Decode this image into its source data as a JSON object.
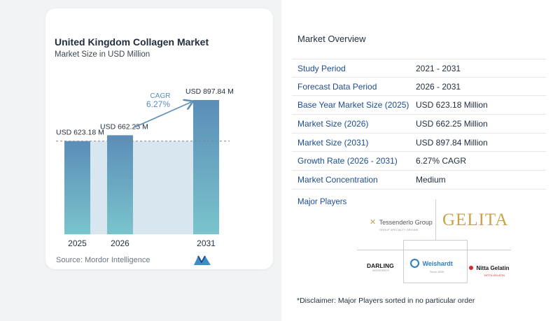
{
  "chart": {
    "title": "United Kingdom Collagen Market",
    "subtitle": "Market Size in USD Million",
    "source": "Source:  Mordor Intelligence",
    "cagr_label": "CAGR",
    "cagr_value": "6.27%"
  },
  "chart_data": {
    "type": "bar",
    "categories": [
      "2025",
      "2026",
      "2031"
    ],
    "values": [
      623.18,
      662.25,
      897.84
    ],
    "data_labels": [
      "USD 623.18 M",
      "USD 662.25 M",
      "USD 897.84 M"
    ],
    "title": "United Kingdom Collagen Market",
    "subtitle": "Market Size in USD Million",
    "ylim": [
      0,
      900
    ],
    "colors": {
      "bar_top": "#5b8db8",
      "bar_bottom": "#7ac4cc",
      "shade": "#d8e6ef",
      "arrow": "#5b8db8"
    },
    "annotation": {
      "label": "CAGR",
      "value": "6.27%"
    }
  },
  "overview": {
    "title": "Market Overview",
    "rows": [
      {
        "label": "Study Period",
        "value": "2021 - 2031"
      },
      {
        "label": "Forecast Data Period",
        "value": "2026 - 2031"
      },
      {
        "label": "Base Year Market Size (2025)",
        "value": "USD 623.18 Million"
      },
      {
        "label": "Market Size (2026)",
        "value": "USD 662.25 Million"
      },
      {
        "label": "Market Size (2031)",
        "value": "USD 897.84 Million"
      },
      {
        "label": "Growth Rate (2026 - 2031)",
        "value": "6.27% CAGR"
      },
      {
        "label": "Market Concentration",
        "value": "Medium"
      }
    ]
  },
  "players": {
    "title": "Major Players",
    "items": [
      "Tessenderlo Group",
      "GELITA",
      "DARLING",
      "Weishardt",
      "Nitta Gelatin"
    ],
    "taglines": [
      "GROUP SPECIALTY ORIGINS",
      "INGREDIENTS",
      "Since 1839",
      "NITTA GELATIN"
    ]
  },
  "disclaimer": "*Disclaimer: Major Players sorted in no particular order",
  "logo_name": "mordor-intelligence-logo"
}
